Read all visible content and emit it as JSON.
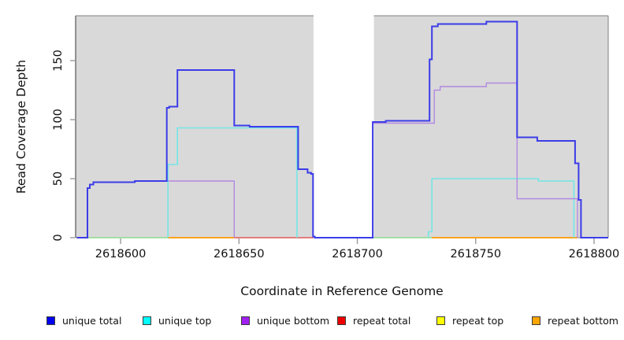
{
  "figure": {
    "background": "#ffffff",
    "plot_background": "#d9d9d9",
    "gap_background": "#ffffff",
    "frame_color": "#808080",
    "tick_color": "#999999"
  },
  "chart_data": {
    "type": "line",
    "subtype": "step-coverage",
    "title": "",
    "xlabel": "Coordinate in Reference Genome",
    "ylabel": "Read Coverage Depth",
    "xlim": [
      2618581,
      2618806
    ],
    "ylim": [
      0,
      188
    ],
    "x_ticks": [
      2618600,
      2618650,
      2618700,
      2618750,
      2618800
    ],
    "y_ticks": [
      0,
      50,
      100,
      150
    ],
    "grid": false,
    "legend_position": "bottom",
    "background_regions": [
      {
        "name": "covered-left",
        "x0": 2618581,
        "x1": 2618681.5,
        "color": "#d9d9d9"
      },
      {
        "name": "gap-uncovered",
        "x0": 2618681.5,
        "x1": 2618707,
        "color": "#ffffff"
      },
      {
        "name": "covered-right",
        "x0": 2618707,
        "x1": 2618806,
        "color": "#d9d9d9"
      }
    ],
    "legend": [
      {
        "label": "unique total",
        "color": "#0000ee"
      },
      {
        "label": "unique top",
        "color": "#00ffff"
      },
      {
        "label": "unique bottom",
        "color": "#a020f0"
      },
      {
        "label": "repeat total",
        "color": "#ee0000"
      },
      {
        "label": "repeat top",
        "color": "#ffff00"
      },
      {
        "label": "repeat bottom",
        "color": "#ffa500"
      }
    ],
    "series": [
      {
        "name": "repeat top (overlaps unique top at 0, renders green)",
        "line_color": "#8fd98f",
        "width": 1.6,
        "segments": [
          [
            [
              2618586.5,
              0
            ],
            [
              2618620,
              0
            ]
          ],
          [
            [
              2618706.5,
              0
            ],
            [
              2618731.5,
              0
            ]
          ]
        ]
      },
      {
        "name": "repeat bottom",
        "line_color": "#ff9800",
        "width": 1.8,
        "segments": [
          [
            [
              2618620,
              0
            ],
            [
              2618648,
              0
            ]
          ],
          [
            [
              2618731.5,
              0
            ],
            [
              2618793,
              0
            ]
          ]
        ]
      },
      {
        "name": "repeat total",
        "line_color": "#e05a5a",
        "width": 1.5,
        "segments": [
          [
            [
              2618648,
              0
            ],
            [
              2618681.3,
              0
            ]
          ]
        ]
      },
      {
        "name": "unique top",
        "line_color": "#74e6e6",
        "width": 1.6,
        "segments": [
          [
            [
              2618620,
              0
            ],
            [
              2618620,
              62
            ],
            [
              2618624,
              62
            ],
            [
              2618624,
              93
            ],
            [
              2618674.5,
              93
            ],
            [
              2618674.5,
              0
            ]
          ],
          [
            [
              2618730,
              0
            ],
            [
              2618730,
              5
            ],
            [
              2618731.5,
              5
            ],
            [
              2618731.5,
              50
            ],
            [
              2618776.5,
              50
            ],
            [
              2618776.5,
              48
            ],
            [
              2618791.5,
              48
            ],
            [
              2618791.5,
              0
            ]
          ]
        ]
      },
      {
        "name": "unique bottom",
        "line_color": "#b289e0",
        "width": 1.4,
        "segments": [
          [
            [
              2618620,
              48
            ],
            [
              2618648,
              48
            ],
            [
              2618648,
              0
            ]
          ],
          [
            [
              2618706.5,
              0
            ],
            [
              2618706.5,
              97
            ],
            [
              2618732.5,
              97
            ],
            [
              2618732.5,
              125
            ],
            [
              2618735,
              125
            ],
            [
              2618735,
              128
            ],
            [
              2618754.5,
              128
            ],
            [
              2618754.5,
              131
            ],
            [
              2618767.5,
              131
            ],
            [
              2618767.5,
              33
            ],
            [
              2618793,
              33
            ],
            [
              2618793,
              0
            ]
          ]
        ]
      },
      {
        "name": "unique total",
        "line_color": "#3c3ce8",
        "width": 2,
        "segments": [
          [
            [
              2618581.5,
              0
            ],
            [
              2618586,
              0
            ],
            [
              2618586,
              42
            ],
            [
              2618587,
              42
            ],
            [
              2618587,
              45
            ],
            [
              2618588.5,
              45
            ],
            [
              2618588.5,
              47
            ],
            [
              2618606,
              47
            ],
            [
              2618606,
              48
            ],
            [
              2618619.5,
              48
            ],
            [
              2618619.5,
              110
            ],
            [
              2618620.5,
              110
            ],
            [
              2618620.5,
              111
            ],
            [
              2618624,
              111
            ],
            [
              2618624,
              142
            ],
            [
              2618648,
              142
            ],
            [
              2618648,
              95
            ],
            [
              2618654.5,
              95
            ],
            [
              2618654.5,
              94
            ],
            [
              2618675,
              94
            ],
            [
              2618675,
              58
            ],
            [
              2618679,
              58
            ],
            [
              2618679,
              55
            ],
            [
              2618680.5,
              55
            ],
            [
              2618680.5,
              54
            ],
            [
              2618681.3,
              54
            ],
            [
              2618681.3,
              1
            ],
            [
              2618682,
              1
            ],
            [
              2618682,
              0
            ],
            [
              2618706.5,
              0
            ],
            [
              2618706.5,
              98
            ],
            [
              2618712,
              98
            ],
            [
              2618712,
              99
            ],
            [
              2618730.5,
              99
            ],
            [
              2618730.5,
              151
            ],
            [
              2618731.5,
              151
            ],
            [
              2618731.5,
              179
            ],
            [
              2618734,
              179
            ],
            [
              2618734,
              181
            ],
            [
              2618754.5,
              181
            ],
            [
              2618754.5,
              183
            ],
            [
              2618767.5,
              183
            ],
            [
              2618767.5,
              85
            ],
            [
              2618776,
              85
            ],
            [
              2618776,
              82
            ],
            [
              2618792,
              82
            ],
            [
              2618792,
              63
            ],
            [
              2618793.5,
              63
            ],
            [
              2618793.5,
              32
            ],
            [
              2618794.5,
              32
            ],
            [
              2618794.5,
              0
            ],
            [
              2618806,
              0
            ]
          ]
        ]
      }
    ]
  }
}
